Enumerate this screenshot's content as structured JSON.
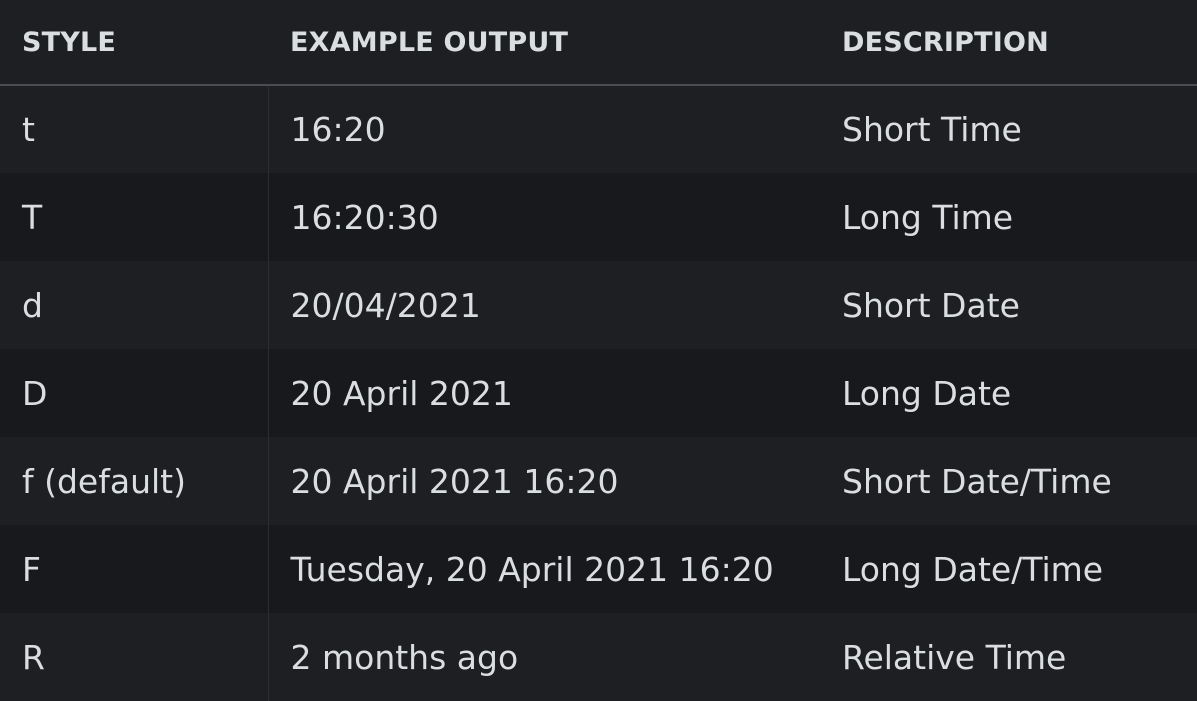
{
  "table": {
    "headers": [
      "STYLE",
      "EXAMPLE OUTPUT",
      "DESCRIPTION"
    ],
    "rows": [
      {
        "style": "t",
        "example": "16:20",
        "description": "Short Time"
      },
      {
        "style": "T",
        "example": "16:20:30",
        "description": "Long Time"
      },
      {
        "style": "d",
        "example": "20/04/2021",
        "description": "Short Date"
      },
      {
        "style": "D",
        "example": "20 April 2021",
        "description": "Long Date"
      },
      {
        "style": "f (default)",
        "example": "20 April 2021 16:20",
        "description": "Short Date/Time"
      },
      {
        "style": "F",
        "example": "Tuesday, 20 April 2021 16:20",
        "description": "Long Date/Time"
      },
      {
        "style": "R",
        "example": "2 months ago",
        "description": "Relative Time"
      }
    ]
  },
  "colors": {
    "background": "#1e1f22",
    "row_alt": "#18191c",
    "text": "#dbdee1",
    "header_border": "#4a4c52"
  }
}
